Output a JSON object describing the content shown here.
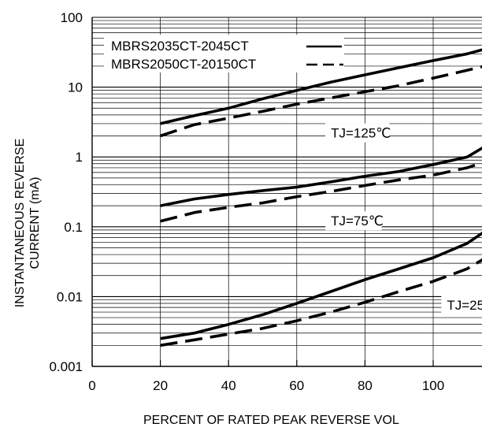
{
  "chart_data": {
    "type": "line",
    "xlabel": "PERCENT OF RATED PEAK REVERSE VOL",
    "ylabel_line1": "INSTANTANEOUS REVERSE",
    "ylabel_line2": "CURRENT (mA)",
    "x_scale": "linear",
    "y_scale": "log",
    "xlim": [
      0,
      115
    ],
    "ylim": [
      0.001,
      100
    ],
    "x_ticks": [
      0,
      20,
      40,
      60,
      80,
      100
    ],
    "y_ticks": [
      0.001,
      0.01,
      0.1,
      1,
      10,
      100
    ],
    "x_tick_labels": [
      "0",
      "20",
      "40",
      "60",
      "80",
      "100"
    ],
    "y_tick_labels": [
      "0.001",
      "0.01",
      "0.1",
      "1",
      "10",
      "100"
    ],
    "grid": "horizontal log gridlines",
    "legend_position": "top-left",
    "legend": [
      {
        "label": "MBRS2035CT-2045CT",
        "style": "solid"
      },
      {
        "label": "MBRS2050CT-20150CT",
        "style": "dashed"
      }
    ],
    "annotations": [
      {
        "text": "TJ=125℃",
        "x": 70,
        "y": 2.0
      },
      {
        "text": "TJ=75℃",
        "x": 70,
        "y": 0.11
      },
      {
        "text": "TJ=25",
        "x": 104,
        "y": 0.0068
      }
    ],
    "series": [
      {
        "group": "TJ=125℃",
        "style": "solid",
        "x": [
          20,
          30,
          40,
          50,
          60,
          70,
          80,
          90,
          100,
          110,
          115
        ],
        "y": [
          3.0,
          3.9,
          5.0,
          6.8,
          9.0,
          11.8,
          15.0,
          19.0,
          24.0,
          30.0,
          35.0
        ]
      },
      {
        "group": "TJ=125℃",
        "style": "dashed",
        "x": [
          20,
          30,
          40,
          50,
          60,
          70,
          80,
          90,
          100,
          110,
          115
        ],
        "y": [
          2.0,
          2.9,
          3.6,
          4.5,
          5.7,
          7.0,
          8.6,
          10.5,
          13.5,
          17.5,
          20.0
        ]
      },
      {
        "group": "TJ=75℃",
        "style": "solid",
        "x": [
          20,
          30,
          40,
          50,
          60,
          70,
          80,
          90,
          100,
          110,
          115
        ],
        "y": [
          0.2,
          0.25,
          0.29,
          0.33,
          0.37,
          0.44,
          0.53,
          0.62,
          0.78,
          1.0,
          1.4
        ]
      },
      {
        "group": "TJ=75℃",
        "style": "dashed",
        "x": [
          20,
          30,
          40,
          50,
          60,
          70,
          80,
          90,
          100,
          110,
          115
        ],
        "y": [
          0.12,
          0.16,
          0.19,
          0.22,
          0.27,
          0.32,
          0.39,
          0.47,
          0.55,
          0.7,
          0.85
        ]
      },
      {
        "group": "TJ=25",
        "style": "solid",
        "x": [
          20,
          30,
          40,
          50,
          60,
          70,
          80,
          90,
          100,
          110,
          115
        ],
        "y": [
          0.0025,
          0.003,
          0.004,
          0.0055,
          0.008,
          0.0118,
          0.0175,
          0.025,
          0.036,
          0.058,
          0.085
        ]
      },
      {
        "group": "TJ=25",
        "style": "dashed",
        "x": [
          20,
          30,
          40,
          50,
          60,
          70,
          80,
          90,
          100,
          110,
          115
        ],
        "y": [
          0.002,
          0.0024,
          0.0029,
          0.0035,
          0.0045,
          0.006,
          0.0083,
          0.0118,
          0.0165,
          0.025,
          0.035
        ]
      }
    ]
  }
}
